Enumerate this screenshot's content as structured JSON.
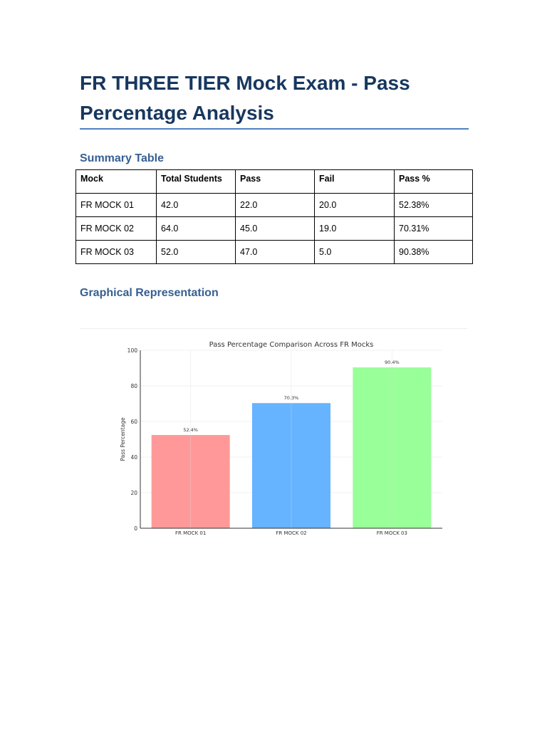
{
  "title": "FR THREE TIER Mock Exam - Pass Percentage Analysis",
  "summary_heading": "Summary Table",
  "table": {
    "headers": [
      "Mock",
      "Total Students",
      "Pass",
      "Fail",
      "Pass %"
    ],
    "rows": [
      [
        "FR MOCK 01",
        "42.0",
        "22.0",
        "20.0",
        "52.38%"
      ],
      [
        "FR MOCK 02",
        "64.0",
        "45.0",
        "19.0",
        "70.31%"
      ],
      [
        "FR MOCK 03",
        "52.0",
        "47.0",
        "5.0",
        "90.38%"
      ]
    ]
  },
  "graph_heading": "Graphical Representation",
  "chart_data": {
    "type": "bar",
    "title": "Pass Percentage Comparison Across FR Mocks",
    "xlabel": "",
    "ylabel": "Pass Percentage",
    "categories": [
      "FR MOCK 01",
      "FR MOCK 02",
      "FR MOCK 03"
    ],
    "values": [
      52.38,
      70.31,
      90.38
    ],
    "data_labels": [
      "52.4%",
      "70.3%",
      "90.4%"
    ],
    "colors": [
      "#ff9999",
      "#66b3ff",
      "#99ff99"
    ],
    "ylim": [
      0,
      100
    ],
    "yticks": [
      0,
      20,
      40,
      60,
      80,
      100
    ],
    "grid": true
  }
}
